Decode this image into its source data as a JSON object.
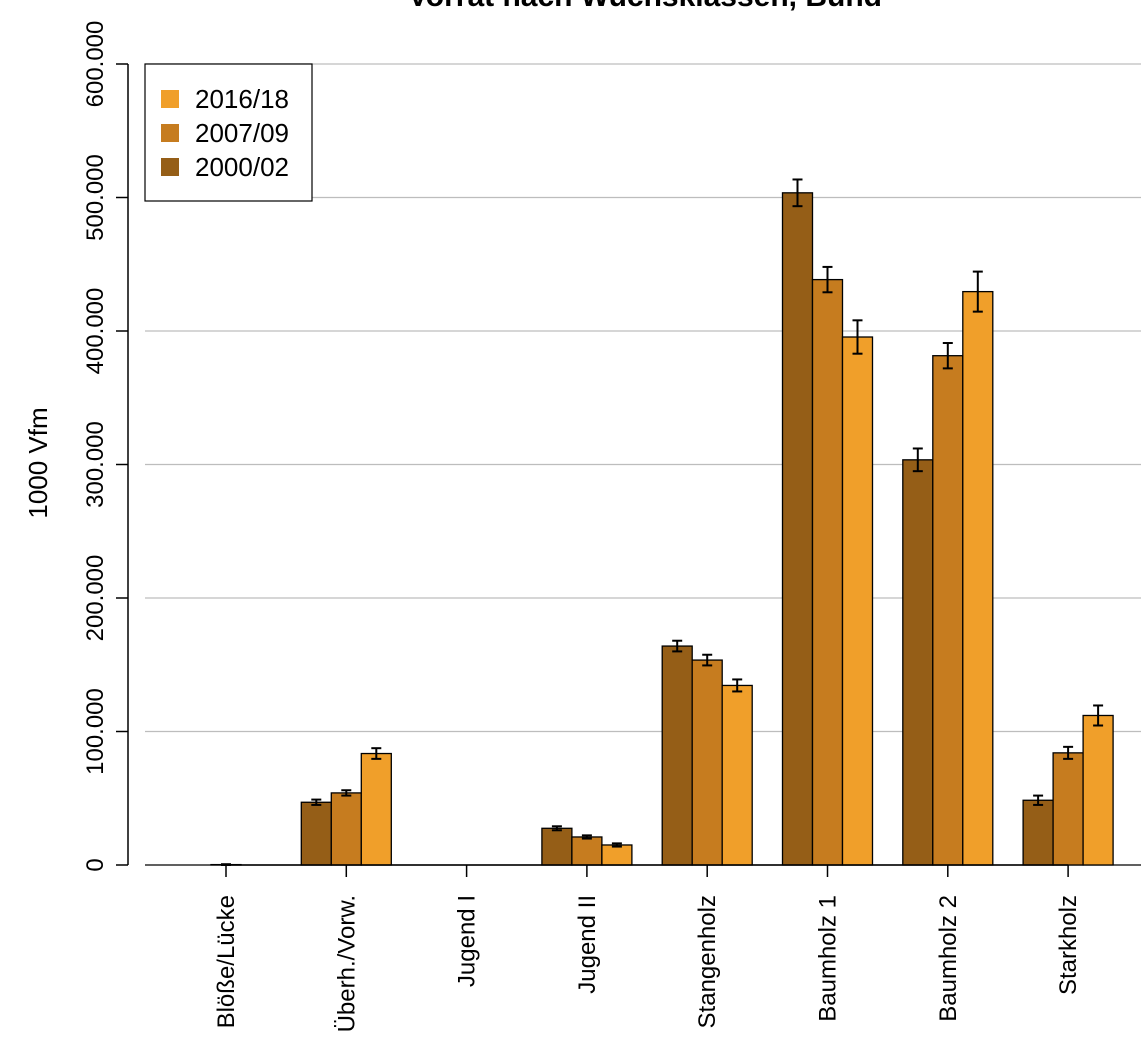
{
  "chart_data": {
    "type": "bar",
    "title": "Vorrat nach Wuchsklassen, Bund",
    "xlabel": "",
    "ylabel": "1000 Vfm",
    "ylim": [
      0,
      600000
    ],
    "yticks": [
      0,
      100000,
      200000,
      300000,
      400000,
      500000,
      600000
    ],
    "ytick_labels": [
      "0",
      "100.000",
      "200.000",
      "300.000",
      "400.000",
      "500.000",
      "600.000"
    ],
    "grid": "horizontal",
    "legend_position": "top-left",
    "categories": [
      "Blöße/Lücke",
      "Überh./Vorw.",
      "Jugend I",
      "Jugend II",
      "Stangenholz",
      "Baumholz 1",
      "Baumholz 2",
      "Starkholz"
    ],
    "series": [
      {
        "name": "2000/02",
        "color": "#955E17",
        "values": [
          0,
          47000,
          0,
          27500,
          164000,
          503500,
          303500,
          48500
        ],
        "errors": [
          0,
          2000,
          0,
          1500,
          4000,
          10000,
          8500,
          3500
        ]
      },
      {
        "name": "2007/09",
        "color": "#C67C1F",
        "values": [
          300,
          54000,
          0,
          21000,
          153500,
          438500,
          381500,
          84000
        ],
        "errors": [
          300,
          2000,
          0,
          1200,
          4000,
          9500,
          9500,
          4500
        ]
      },
      {
        "name": "2016/18",
        "color": "#F09F2A",
        "values": [
          0,
          83500,
          0,
          15000,
          134500,
          395500,
          429500,
          112000
        ],
        "errors": [
          0,
          4000,
          0,
          1200,
          4500,
          12500,
          15000,
          7500
        ]
      }
    ],
    "legend_order": [
      "2016/18",
      "2007/09",
      "2000/02"
    ]
  }
}
